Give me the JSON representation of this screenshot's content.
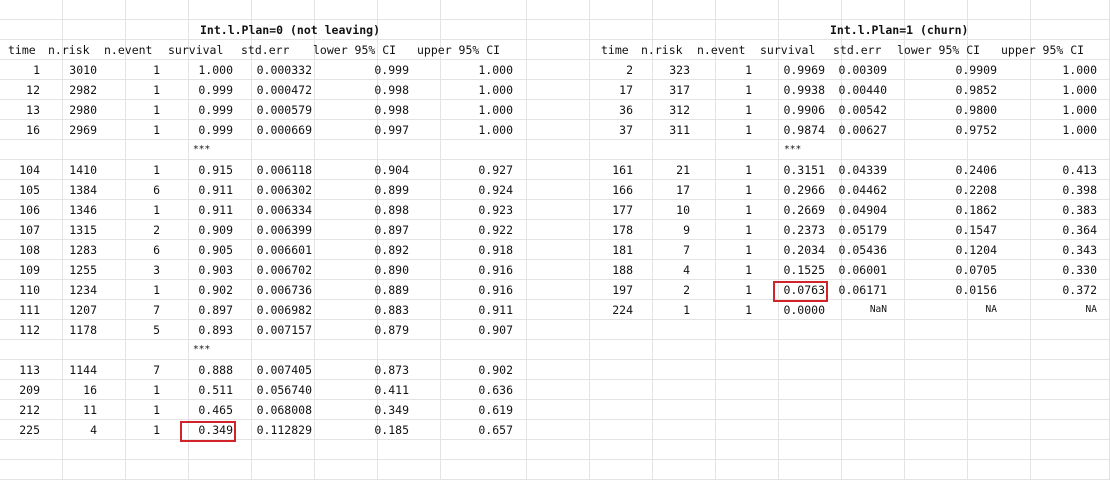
{
  "left_table": {
    "title": "Int.l.Plan=0 (not leaving)",
    "headers": [
      "time",
      "n.risk",
      "n.event",
      "survival",
      "std.err",
      "lower 95% CI",
      "upper 95% CI"
    ],
    "rows": [
      [
        "1",
        "3010",
        "1",
        "1.000",
        "0.000332",
        "0.999",
        "1.000"
      ],
      [
        "12",
        "2982",
        "1",
        "0.999",
        "0.000472",
        "0.998",
        "1.000"
      ],
      [
        "13",
        "2980",
        "1",
        "0.999",
        "0.000579",
        "0.998",
        "1.000"
      ],
      [
        "16",
        "2969",
        "1",
        "0.999",
        "0.000669",
        "0.997",
        "1.000"
      ],
      "***",
      [
        "104",
        "1410",
        "1",
        "0.915",
        "0.006118",
        "0.904",
        "0.927"
      ],
      [
        "105",
        "1384",
        "6",
        "0.911",
        "0.006302",
        "0.899",
        "0.924"
      ],
      [
        "106",
        "1346",
        "1",
        "0.911",
        "0.006334",
        "0.898",
        "0.923"
      ],
      [
        "107",
        "1315",
        "2",
        "0.909",
        "0.006399",
        "0.897",
        "0.922"
      ],
      [
        "108",
        "1283",
        "6",
        "0.905",
        "0.006601",
        "0.892",
        "0.918"
      ],
      [
        "109",
        "1255",
        "3",
        "0.903",
        "0.006702",
        "0.890",
        "0.916"
      ],
      [
        "110",
        "1234",
        "1",
        "0.902",
        "0.006736",
        "0.889",
        "0.916"
      ],
      [
        "111",
        "1207",
        "7",
        "0.897",
        "0.006982",
        "0.883",
        "0.911"
      ],
      [
        "112",
        "1178",
        "5",
        "0.893",
        "0.007157",
        "0.879",
        "0.907"
      ],
      "***",
      [
        "113",
        "1144",
        "7",
        "0.888",
        "0.007405",
        "0.873",
        "0.902"
      ],
      [
        "209",
        "16",
        "1",
        "0.511",
        "0.056740",
        "0.411",
        "0.636"
      ],
      [
        "212",
        "11",
        "1",
        "0.465",
        "0.068008",
        "0.349",
        "0.619"
      ],
      [
        "225",
        "4",
        "1",
        "0.349",
        "0.112829",
        "0.185",
        "0.657"
      ]
    ]
  },
  "right_table": {
    "title": "Int.l.Plan=1 (churn)",
    "headers": [
      "time",
      "n.risk",
      "n.event",
      "survival",
      "std.err",
      "lower 95% CI",
      "upper 95% CI"
    ],
    "rows": [
      [
        "2",
        "323",
        "1",
        "0.9969",
        "0.00309",
        "0.9909",
        "1.000"
      ],
      [
        "17",
        "317",
        "1",
        "0.9938",
        "0.00440",
        "0.9852",
        "1.000"
      ],
      [
        "36",
        "312",
        "1",
        "0.9906",
        "0.00542",
        "0.9800",
        "1.000"
      ],
      [
        "37",
        "311",
        "1",
        "0.9874",
        "0.00627",
        "0.9752",
        "1.000"
      ],
      "***",
      [
        "161",
        "21",
        "1",
        "0.3151",
        "0.04339",
        "0.2406",
        "0.413"
      ],
      [
        "166",
        "17",
        "1",
        "0.2966",
        "0.04462",
        "0.2208",
        "0.398"
      ],
      [
        "177",
        "10",
        "1",
        "0.2669",
        "0.04904",
        "0.1862",
        "0.383"
      ],
      [
        "178",
        "9",
        "1",
        "0.2373",
        "0.05179",
        "0.1547",
        "0.364"
      ],
      [
        "181",
        "7",
        "1",
        "0.2034",
        "0.05436",
        "0.1204",
        "0.343"
      ],
      [
        "188",
        "4",
        "1",
        "0.1525",
        "0.06001",
        "0.0705",
        "0.330"
      ],
      [
        "197",
        "2",
        "1",
        "0.0763",
        "0.06171",
        "0.0156",
        "0.372"
      ],
      [
        "224",
        "1",
        "1",
        "0.0000",
        "NaN",
        "NA",
        "NA"
      ]
    ]
  },
  "highlights": {
    "left_value": "0.349",
    "right_value": "0.0763",
    "color": "#d2232a"
  },
  "colors": {
    "gridline": "#e3e3e3",
    "text": "#111111"
  }
}
